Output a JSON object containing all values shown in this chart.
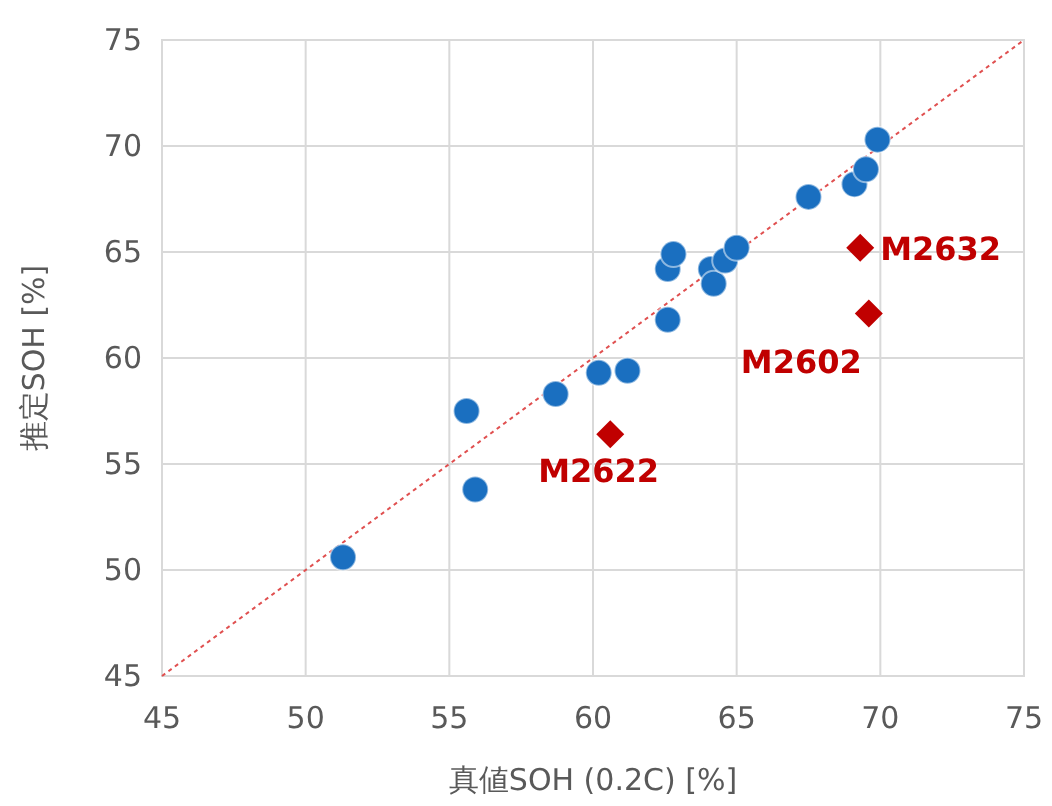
{
  "chart_data": {
    "type": "scatter",
    "xlabel": "真値SOH (0.2C) [%]",
    "ylabel": "推定SOH [%]",
    "xlim": [
      45,
      75
    ],
    "ylim": [
      45,
      75
    ],
    "xticks": [
      45,
      50,
      55,
      60,
      65,
      70,
      75
    ],
    "yticks": [
      45,
      50,
      55,
      60,
      65,
      70,
      75
    ],
    "grid": true,
    "series": [
      {
        "type": "line",
        "color": "#e05050",
        "line_style": "dotted",
        "x": [
          45,
          75
        ],
        "values": [
          45,
          75
        ]
      },
      {
        "color": "#1a6fc0",
        "marker": "circle",
        "x": [
          51.3,
          55.6,
          55.9,
          58.7,
          60.2,
          61.2,
          62.6,
          62.6,
          62.8,
          64.1,
          64.2,
          64.6,
          65.0,
          67.5,
          69.1,
          69.5,
          69.9
        ],
        "values": [
          50.6,
          57.5,
          53.8,
          58.3,
          59.3,
          59.4,
          61.8,
          64.2,
          64.9,
          64.2,
          63.5,
          64.6,
          65.2,
          67.6,
          68.2,
          68.9,
          70.3
        ]
      },
      {
        "color": "#c00000",
        "marker": "diamond",
        "x": [
          60.6,
          69.3,
          69.6
        ],
        "values": [
          56.4,
          65.2,
          62.1
        ]
      }
    ],
    "annotations": [
      {
        "text": "M2622",
        "x": 60.6,
        "y": 56.4
      },
      {
        "text": "M2632",
        "x": 69.3,
        "y": 65.2
      },
      {
        "text": "M2602",
        "x": 69.6,
        "y": 62.1
      }
    ]
  }
}
